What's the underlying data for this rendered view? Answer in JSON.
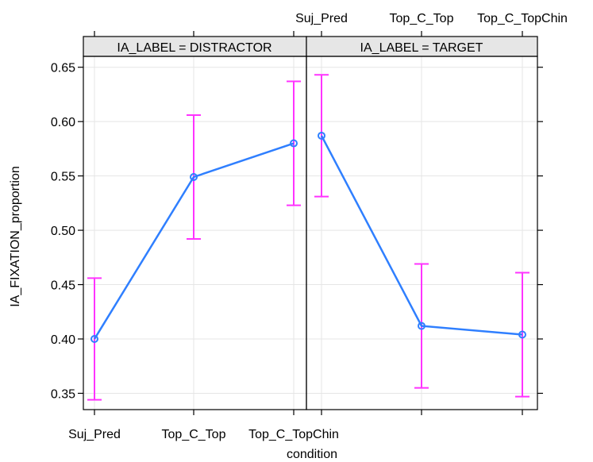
{
  "chart_data": {
    "type": "line",
    "xlabel": "condition",
    "ylabel": "IA_FIXATION_proportion",
    "ylim": [
      0.335,
      0.66
    ],
    "yticks": [
      "0.35",
      "0.40",
      "0.45",
      "0.50",
      "0.55",
      "0.60",
      "0.65"
    ],
    "categories": [
      "Suj_Pred",
      "Top_C_Top",
      "Top_C_TopChin"
    ],
    "grid": true,
    "colors": {
      "line": "#2f7fff",
      "error_bar": "#ff33ff",
      "strip": "#e6e6e6"
    },
    "panels": [
      {
        "strip_label": "IA_LABEL = DISTRACTOR",
        "values": [
          0.4,
          0.549,
          0.58
        ],
        "lower": [
          0.344,
          0.492,
          0.523
        ],
        "upper": [
          0.456,
          0.606,
          0.637
        ]
      },
      {
        "strip_label": "IA_LABEL = TARGET",
        "values": [
          0.587,
          0.412,
          0.404
        ],
        "lower": [
          0.531,
          0.355,
          0.347
        ],
        "upper": [
          0.643,
          0.469,
          0.461
        ]
      }
    ]
  }
}
